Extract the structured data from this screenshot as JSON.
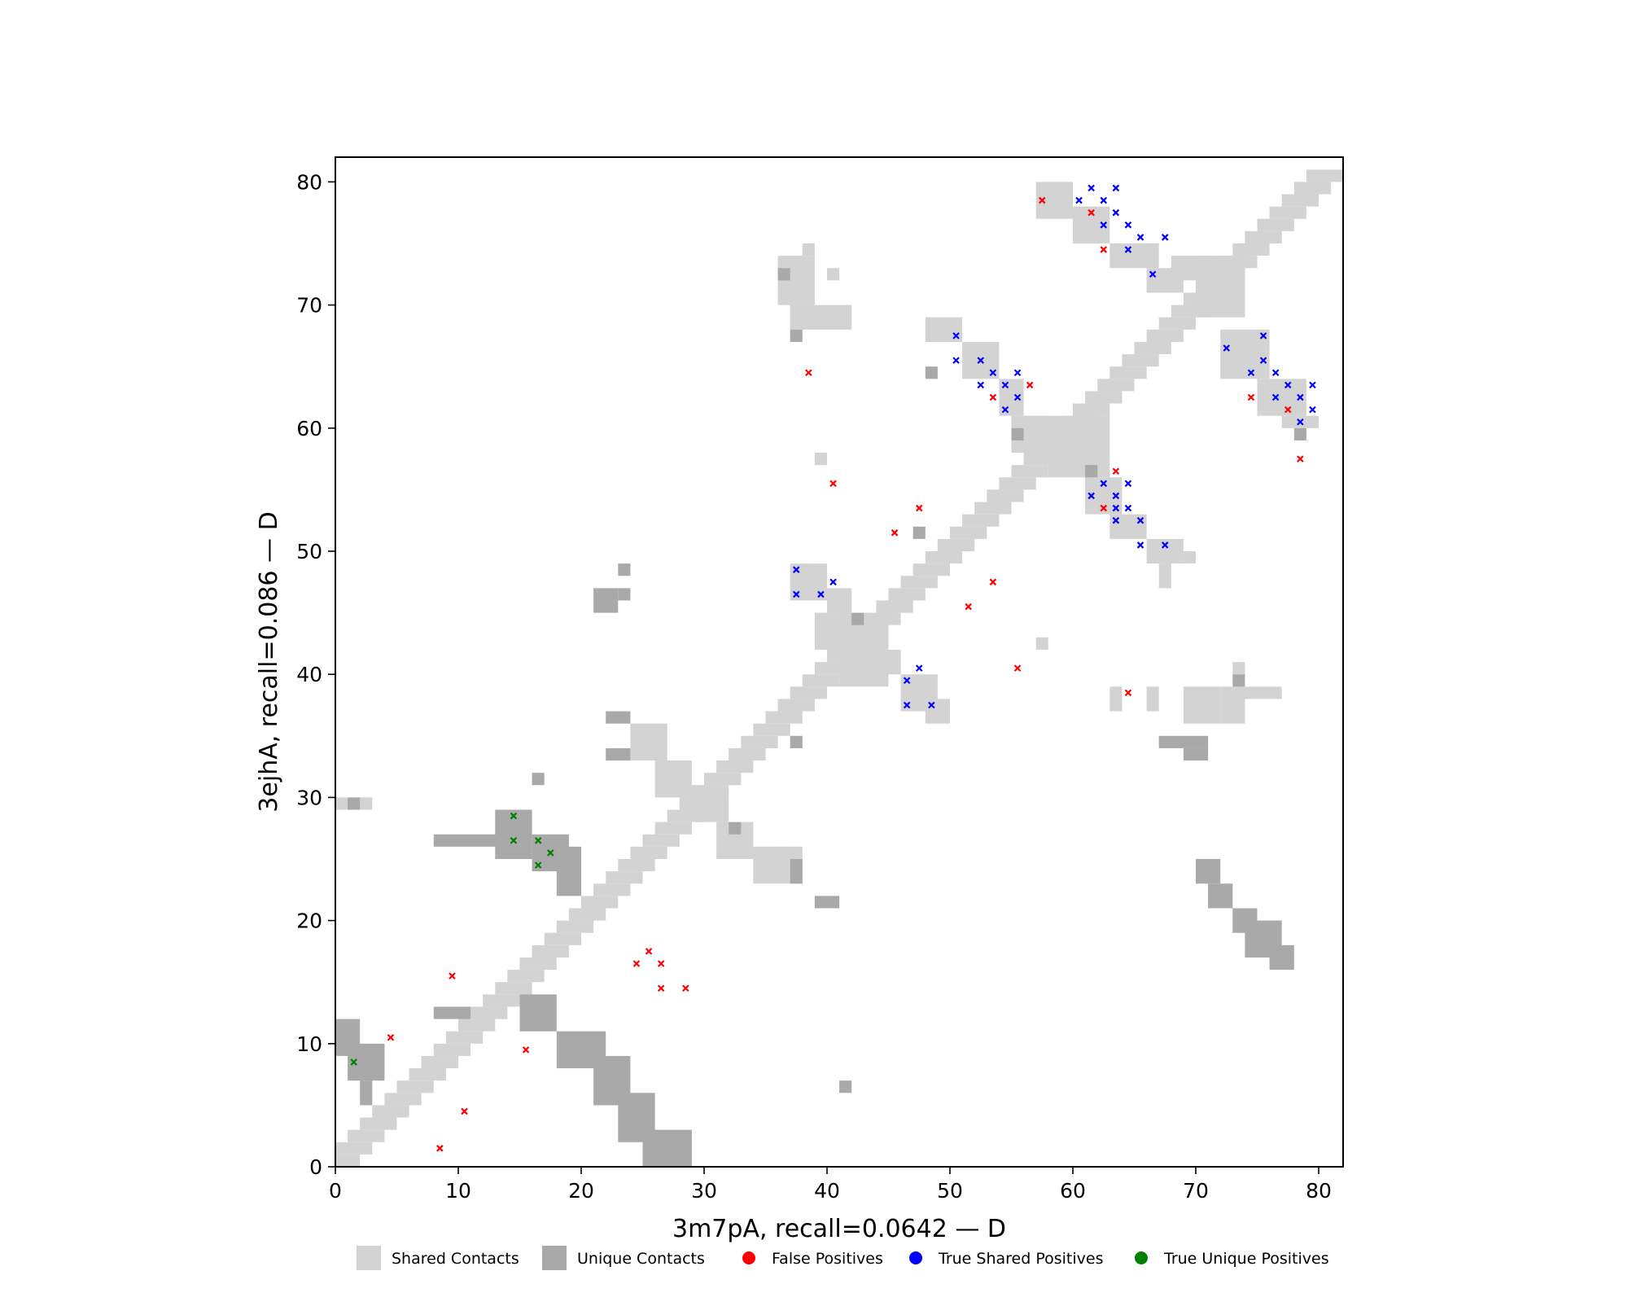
{
  "chart_data": {
    "type": "scatter",
    "xlabel": "3m7pA, recall=0.0642 — D",
    "ylabel": "3ejhA, recall=0.086 — D",
    "xlim": [
      0,
      82
    ],
    "ylim": [
      0,
      82
    ],
    "xticks": [
      0,
      10,
      20,
      30,
      40,
      50,
      60,
      70,
      80
    ],
    "yticks": [
      0,
      10,
      20,
      30,
      40,
      50,
      60,
      70,
      80
    ],
    "grid": false,
    "legend_position": "bottom",
    "colors": {
      "shared": "#d3d3d3",
      "unique": "#a9a9a9",
      "false_pos": "#ff0000",
      "true_shared": "#0000ff",
      "true_unique": "#008000"
    },
    "legend": [
      {
        "label": "Shared Contacts",
        "shape": "square",
        "color": "#d3d3d3"
      },
      {
        "label": "Unique Contacts",
        "shape": "square",
        "color": "#a9a9a9"
      },
      {
        "label": "False Positives",
        "shape": "circle",
        "color": "#ff0000"
      },
      {
        "label": "True Shared Positives",
        "shape": "circle",
        "color": "#0000ff"
      },
      {
        "label": "True Unique Positives",
        "shape": "circle",
        "color": "#008000"
      }
    ],
    "shared_contacts_rects": [
      [
        39,
        57,
        1,
        1
      ],
      [
        50,
        67,
        1,
        1
      ],
      [
        36,
        70,
        3,
        4
      ],
      [
        37,
        68,
        5,
        2
      ],
      [
        38,
        74,
        1,
        1
      ],
      [
        40,
        72,
        1,
        1
      ],
      [
        48,
        67,
        3,
        2
      ],
      [
        51,
        64,
        3,
        3
      ],
      [
        54,
        61,
        2,
        3
      ],
      [
        56,
        59,
        2,
        2
      ],
      [
        37,
        46,
        3,
        3
      ],
      [
        40,
        45,
        2,
        2
      ],
      [
        46,
        37,
        3,
        3
      ],
      [
        48,
        36,
        2,
        2
      ],
      [
        61,
        53,
        3,
        3
      ],
      [
        63,
        51,
        3,
        2
      ],
      [
        66,
        49,
        3,
        2
      ],
      [
        67,
        47,
        1,
        2
      ],
      [
        69,
        49,
        1,
        1
      ],
      [
        57,
        77,
        3,
        3
      ],
      [
        60,
        75,
        3,
        3
      ],
      [
        63,
        73,
        4,
        2
      ],
      [
        66,
        71,
        3,
        2
      ],
      [
        72,
        64,
        4,
        4
      ],
      [
        75,
        61,
        4,
        3
      ],
      [
        77,
        60,
        3,
        1
      ],
      [
        63,
        37,
        1,
        2
      ],
      [
        66,
        37,
        1,
        2
      ],
      [
        69,
        36,
        3,
        3
      ],
      [
        72,
        36,
        2,
        3
      ],
      [
        74,
        38,
        3,
        1
      ],
      [
        73,
        40,
        1,
        1
      ],
      [
        57,
        42,
        1,
        1
      ],
      [
        0,
        29,
        3,
        1
      ],
      [
        24,
        33,
        3,
        3
      ],
      [
        26,
        30,
        3,
        3
      ],
      [
        29,
        28,
        3,
        3
      ],
      [
        31,
        25,
        3,
        3
      ],
      [
        34,
        23,
        4,
        3
      ],
      [
        36,
        24,
        1,
        2
      ],
      [
        41,
        39,
        4,
        6
      ],
      [
        39,
        42,
        3,
        3
      ],
      [
        44,
        40,
        2,
        2
      ],
      [
        58,
        56,
        5,
        5
      ],
      [
        55,
        58,
        3,
        3
      ],
      [
        70,
        69,
        4,
        5
      ],
      [
        68,
        72,
        3,
        2
      ],
      [
        28,
        0,
        1,
        2
      ]
    ],
    "unique_contacts_rects": [
      [
        1,
        29,
        1,
        1
      ],
      [
        8,
        26,
        6,
        1
      ],
      [
        13,
        25,
        3,
        4
      ],
      [
        16,
        24,
        3,
        3
      ],
      [
        18,
        22,
        2,
        4
      ],
      [
        8,
        12,
        3,
        1
      ],
      [
        15,
        11,
        3,
        3
      ],
      [
        18,
        8,
        4,
        3
      ],
      [
        21,
        5,
        3,
        4
      ],
      [
        23,
        2,
        3,
        4
      ],
      [
        25,
        0,
        4,
        3
      ],
      [
        0,
        9,
        2,
        3
      ],
      [
        1,
        7,
        3,
        3
      ],
      [
        2,
        5,
        1,
        2
      ],
      [
        21,
        45,
        2,
        2
      ],
      [
        23,
        46,
        1,
        1
      ],
      [
        23,
        48,
        1,
        1
      ],
      [
        22,
        36,
        2,
        1
      ],
      [
        22,
        33,
        2,
        1
      ],
      [
        16,
        31,
        1,
        1
      ],
      [
        32,
        27,
        1,
        1
      ],
      [
        37,
        23,
        1,
        2
      ],
      [
        39,
        21,
        2,
        1
      ],
      [
        41,
        6,
        1,
        1
      ],
      [
        37,
        34,
        1,
        1
      ],
      [
        37,
        67,
        1,
        1
      ],
      [
        36,
        72,
        1,
        1
      ],
      [
        48,
        64,
        1,
        1
      ],
      [
        42,
        44,
        1,
        1
      ],
      [
        55,
        59,
        1,
        1
      ],
      [
        61,
        56,
        1,
        1
      ],
      [
        47,
        51,
        1,
        1
      ],
      [
        73,
        39,
        1,
        1
      ],
      [
        67,
        34,
        4,
        1
      ],
      [
        69,
        33,
        2,
        1
      ],
      [
        70,
        23,
        2,
        2
      ],
      [
        71,
        21,
        2,
        2
      ],
      [
        73,
        19,
        2,
        2
      ],
      [
        74,
        17,
        3,
        3
      ],
      [
        76,
        16,
        2,
        2
      ],
      [
        78,
        59,
        1,
        1
      ]
    ],
    "false_positives": [
      [
        57,
        78
      ],
      [
        61,
        77
      ],
      [
        62,
        74
      ],
      [
        38,
        64
      ],
      [
        53,
        62
      ],
      [
        56,
        63
      ],
      [
        40,
        55
      ],
      [
        47,
        53
      ],
      [
        45,
        51
      ],
      [
        63,
        56
      ],
      [
        62,
        53
      ],
      [
        53,
        47
      ],
      [
        51,
        45
      ],
      [
        55,
        40
      ],
      [
        64,
        38
      ],
      [
        74,
        62
      ],
      [
        77,
        61
      ],
      [
        78,
        57
      ],
      [
        9,
        15
      ],
      [
        4,
        10
      ],
      [
        15,
        9
      ],
      [
        10,
        4
      ],
      [
        8,
        1
      ],
      [
        24,
        16
      ],
      [
        25,
        17
      ],
      [
        26,
        16
      ],
      [
        26,
        14
      ],
      [
        28,
        14
      ]
    ],
    "true_shared_positives": [
      [
        60,
        78
      ],
      [
        61,
        79
      ],
      [
        62,
        78
      ],
      [
        63,
        79
      ],
      [
        62,
        76
      ],
      [
        63,
        77
      ],
      [
        64,
        76
      ],
      [
        64,
        74
      ],
      [
        65,
        75
      ],
      [
        67,
        75
      ],
      [
        66,
        72
      ],
      [
        50,
        67
      ],
      [
        50,
        65
      ],
      [
        52,
        65
      ],
      [
        53,
        64
      ],
      [
        52,
        63
      ],
      [
        54,
        63
      ],
      [
        55,
        64
      ],
      [
        55,
        62
      ],
      [
        54,
        61
      ],
      [
        37,
        48
      ],
      [
        37,
        46
      ],
      [
        39,
        46
      ],
      [
        40,
        47
      ],
      [
        46,
        39
      ],
      [
        47,
        40
      ],
      [
        46,
        37
      ],
      [
        48,
        37
      ],
      [
        61,
        54
      ],
      [
        62,
        55
      ],
      [
        63,
        54
      ],
      [
        64,
        55
      ],
      [
        63,
        53
      ],
      [
        64,
        53
      ],
      [
        63,
        52
      ],
      [
        65,
        52
      ],
      [
        65,
        50
      ],
      [
        67,
        50
      ],
      [
        72,
        66
      ],
      [
        74,
        64
      ],
      [
        75,
        65
      ],
      [
        75,
        67
      ],
      [
        76,
        64
      ],
      [
        76,
        62
      ],
      [
        77,
        63
      ],
      [
        78,
        62
      ],
      [
        79,
        63
      ],
      [
        78,
        60
      ],
      [
        79,
        61
      ]
    ],
    "true_unique_positives": [
      [
        1,
        8
      ],
      [
        14,
        28
      ],
      [
        14,
        26
      ],
      [
        16,
        26
      ],
      [
        17,
        25
      ],
      [
        16,
        24
      ]
    ]
  }
}
